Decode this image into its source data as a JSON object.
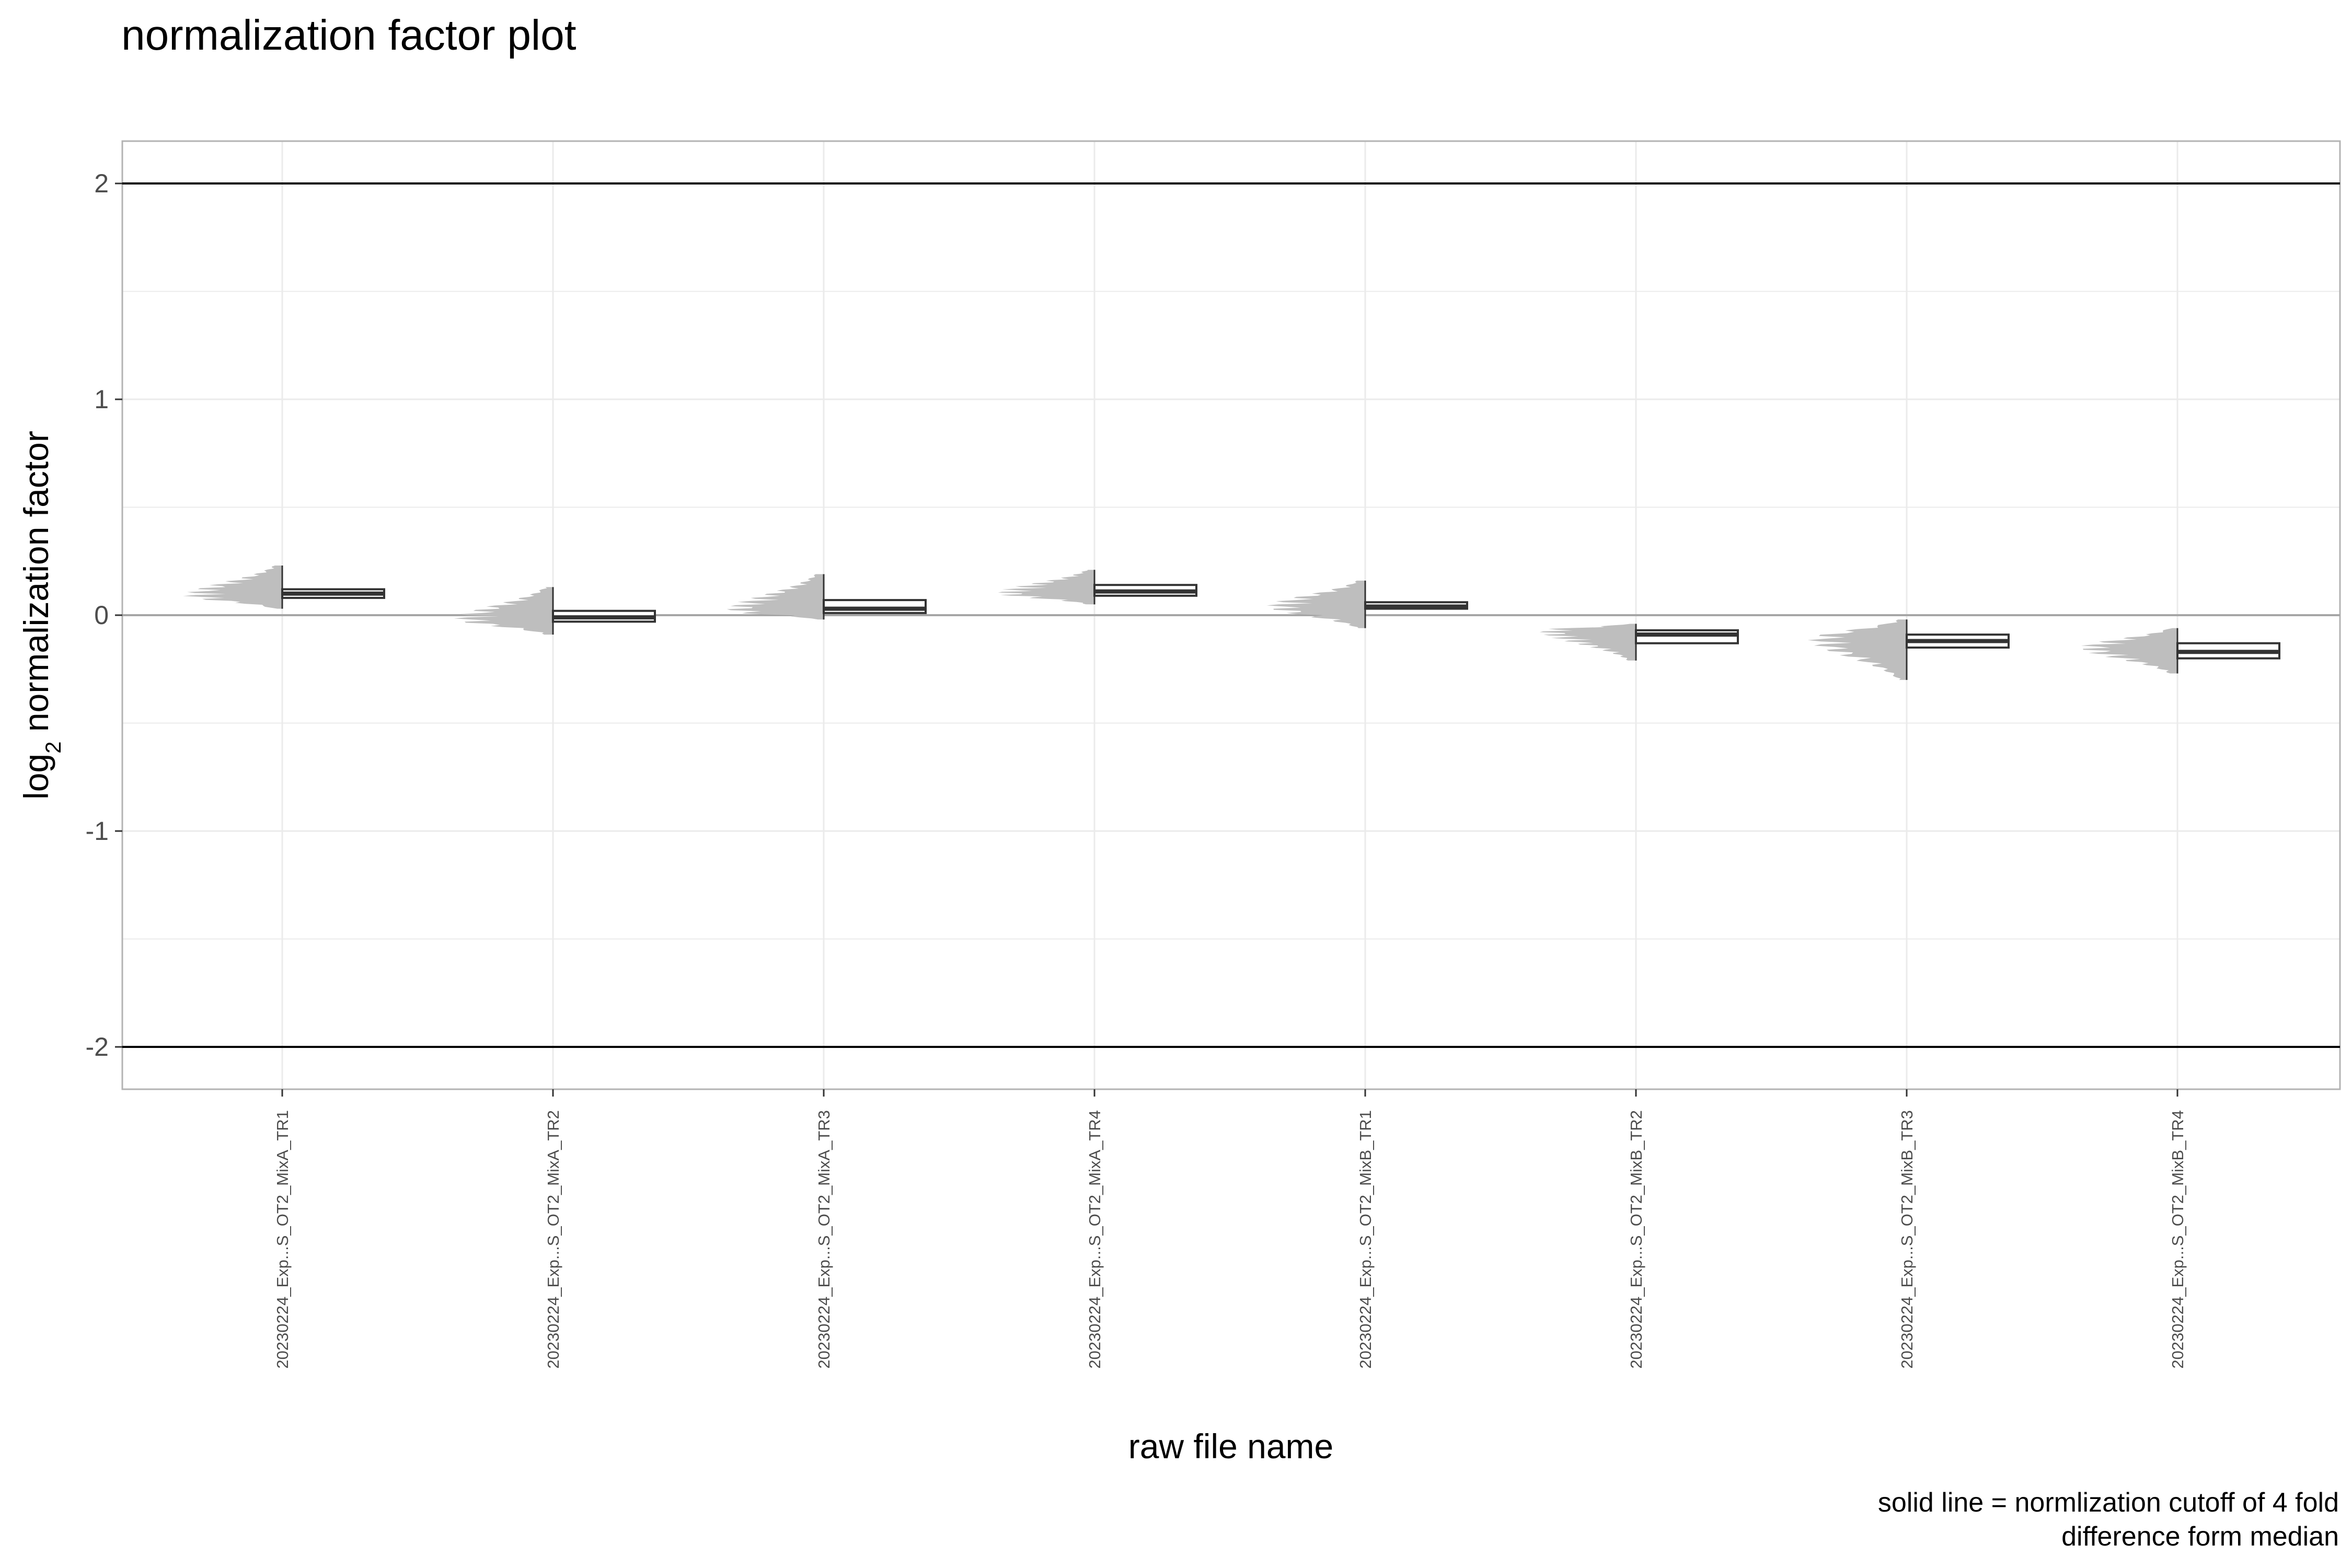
{
  "chart_data": {
    "type": "violin-box",
    "title": "normalization factor plot",
    "xlabel": "raw file name",
    "ylabel": {
      "prefix": "log",
      "subscript": "2",
      "suffix": " normalization factor"
    },
    "caption": [
      "solid line = normlization cutoff of 4 fold",
      "difference form median"
    ],
    "ylim": [
      -2.2,
      2.2
    ],
    "yticks": [
      2,
      1,
      0,
      -1,
      -2
    ],
    "ytick_labels": [
      "2",
      "1",
      "0",
      "-1",
      "-2"
    ],
    "cutoff_lines": [
      2,
      -2
    ],
    "reference_line": 0,
    "grid": true,
    "categories": [
      "20230224_Exp...S_OT2_MixA_TR1",
      "20230224_Exp...S_OT2_MixA_TR2",
      "20230224_Exp...S_OT2_MixA_TR3",
      "20230224_Exp...S_OT2_MixA_TR4",
      "20230224_Exp...S_OT2_MixB_TR1",
      "20230224_Exp...S_OT2_MixB_TR2",
      "20230224_Exp...S_OT2_MixB_TR3",
      "20230224_Exp...S_OT2_MixB_TR4"
    ],
    "series": [
      {
        "min": 0.03,
        "q1": 0.08,
        "median": 0.1,
        "q3": 0.12,
        "max": 0.23,
        "mode": 0.09
      },
      {
        "min": -0.09,
        "q1": -0.03,
        "median": -0.01,
        "q3": 0.02,
        "max": 0.13,
        "mode": -0.02
      },
      {
        "min": -0.02,
        "q1": 0.01,
        "median": 0.03,
        "q3": 0.07,
        "max": 0.19,
        "mode": 0.02
      },
      {
        "min": 0.05,
        "q1": 0.09,
        "median": 0.11,
        "q3": 0.14,
        "max": 0.21,
        "mode": 0.1
      },
      {
        "min": -0.06,
        "q1": 0.03,
        "median": 0.04,
        "q3": 0.06,
        "max": 0.16,
        "mode": 0.04
      },
      {
        "min": -0.21,
        "q1": -0.13,
        "median": -0.09,
        "q3": -0.07,
        "max": -0.04,
        "mode": -0.07
      },
      {
        "min": -0.3,
        "q1": -0.15,
        "median": -0.12,
        "q3": -0.09,
        "max": -0.02,
        "mode": -0.11
      },
      {
        "min": -0.27,
        "q1": -0.2,
        "median": -0.17,
        "q3": -0.13,
        "max": -0.06,
        "mode": -0.15
      }
    ],
    "colors": {
      "violin": "#bebebe",
      "box_fill": "#ffffff",
      "box_stroke": "#333333",
      "grid": "#ebebeb",
      "panel_border": "#b3b3b3",
      "cutoff": "#000000",
      "reference": "#a6a6a6"
    }
  }
}
